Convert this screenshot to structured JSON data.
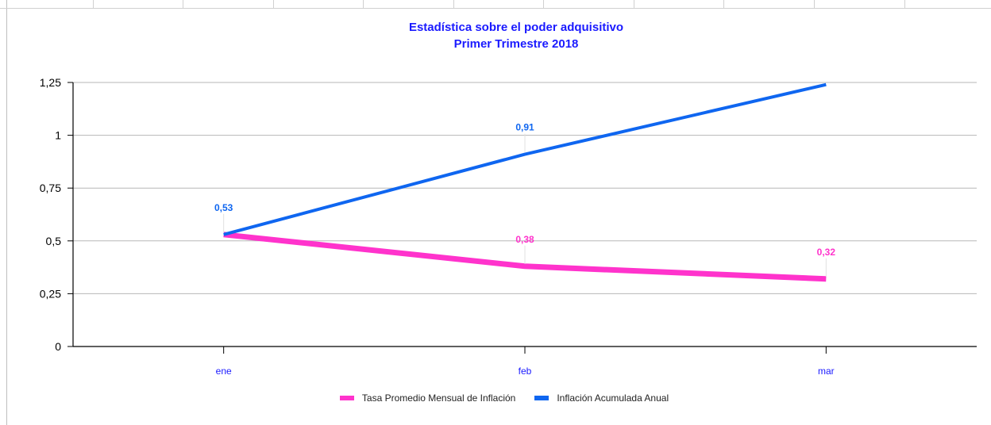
{
  "chart_data": {
    "type": "line",
    "title": "Estadística sobre el poder adquisitivo",
    "subtitle": "Primer Trimestre 2018",
    "categories": [
      "ene",
      "feb",
      "mar"
    ],
    "ylim": [
      0,
      1.25
    ],
    "yticks": [
      "0",
      "0,25",
      "0,5",
      "0,75",
      "1",
      "1,25"
    ],
    "ytick_values": [
      0,
      0.25,
      0.5,
      0.75,
      1,
      1.25
    ],
    "grid": true,
    "legend_position": "bottom",
    "series": [
      {
        "name": "Tasa Promedio Mensual de Inflación",
        "color": "#ff33cc",
        "values": [
          0.53,
          0.38,
          0.32
        ],
        "labels": [
          "",
          "0,38",
          "0,32"
        ]
      },
      {
        "name": "Inflación Acumulada Anual",
        "color": "#0f66f0",
        "values": [
          0.53,
          0.91,
          1.24
        ],
        "labels": [
          "0,53",
          "0,91",
          ""
        ]
      }
    ]
  }
}
